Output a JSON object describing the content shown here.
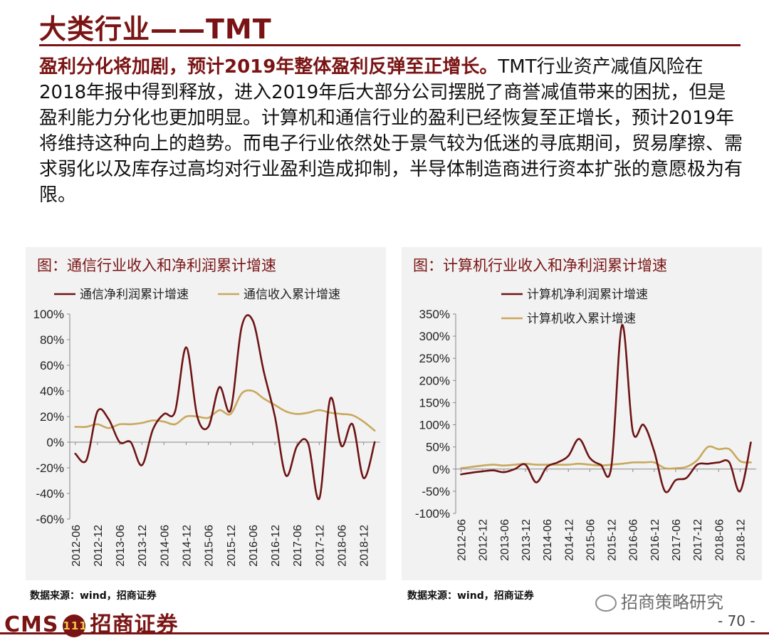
{
  "header": {
    "title": "大类行业——TMT"
  },
  "intro": {
    "lead": "盈利分化将加剧，预计2019年整体盈利反弹至正增长。",
    "body": "TMT行业资产减值风险在2018年报中得到释放，进入2019年后大部分公司摆脱了商誉减值带来的困扰，但是盈利能力分化也更加明显。计算机和通信行业的盈利已经恢复至正增长，预计2019年将维持这种向上的趋势。而电子行业依然处于景气较为低迷的寻底期间，贸易摩擦、需求弱化以及库存过高均对行业盈利造成抑制，半导体制造商进行资本扩张的意愿极为有限。"
  },
  "colors": {
    "profit": "#6e1414",
    "revenue": "#c9a85c",
    "accent": "#7a1414",
    "panel": "#f2f2f2"
  },
  "chart_data": [
    {
      "type": "line",
      "title": "图：通信行业收入和净利润累计增速",
      "ylim": [
        -60,
        100
      ],
      "yticks": [
        "100%",
        "80%",
        "60%",
        "40%",
        "20%",
        "0%",
        "-20%",
        "-40%",
        "-60%"
      ],
      "xtick_labels": [
        "2012-06",
        "2012-12",
        "2013-06",
        "2013-12",
        "2014-06",
        "2014-12",
        "2015-06",
        "2015-12",
        "2016-06",
        "2016-12",
        "2017-06",
        "2017-12",
        "2018-06",
        "2018-12"
      ],
      "grid": false,
      "legend": "top",
      "series": [
        {
          "name": "通信净利润累计增速",
          "color": "#6e1414",
          "values": [
            -9,
            -14,
            24,
            18,
            0,
            0,
            -18,
            10,
            22,
            24,
            74,
            20,
            12,
            43,
            25,
            90,
            95,
            55,
            20,
            -26,
            -3,
            -1,
            -44,
            34,
            -3,
            14,
            -28,
            0
          ]
        },
        {
          "name": "通信收入累计增速",
          "color": "#c9a85c",
          "values": [
            12,
            12,
            14,
            11,
            14,
            14,
            15,
            17,
            16,
            14,
            20,
            20,
            19,
            25,
            22,
            38,
            40,
            34,
            29,
            24,
            22,
            23,
            25,
            23,
            22,
            21,
            16,
            9
          ]
        }
      ]
    },
    {
      "type": "line",
      "title": "图：计算机行业收入和净利润累计增速",
      "ylim": [
        -100,
        350
      ],
      "yticks": [
        "350%",
        "300%",
        "250%",
        "200%",
        "150%",
        "100%",
        "50%",
        "0%",
        "-50%",
        "-100%"
      ],
      "xtick_labels": [
        "2012-06",
        "2012-12",
        "2013-06",
        "2013-12",
        "2014-06",
        "2014-12",
        "2015-06",
        "2015-12",
        "2016-06",
        "2016-12",
        "2017-06",
        "2017-12",
        "2018-06",
        "2018-12"
      ],
      "grid": false,
      "legend": "top",
      "series": [
        {
          "name": "计算机净利润累计增速",
          "color": "#6e1414",
          "values": [
            -12,
            -8,
            -5,
            -3,
            -7,
            0,
            10,
            -30,
            5,
            15,
            30,
            68,
            25,
            10,
            5,
            325,
            85,
            100,
            40,
            -50,
            -25,
            -20,
            10,
            12,
            15,
            15,
            -50,
            60
          ]
        },
        {
          "name": "计算机收入累计增速",
          "color": "#c9a85c",
          "values": [
            2,
            5,
            8,
            10,
            8,
            10,
            12,
            10,
            10,
            10,
            10,
            12,
            10,
            8,
            10,
            12,
            15,
            15,
            15,
            2,
            2,
            5,
            20,
            50,
            45,
            45,
            18,
            15
          ]
        }
      ]
    }
  ],
  "sources": {
    "left": "数据来源：wind，招商证券",
    "right": "数据来源：wind，招商证券"
  },
  "footer": {
    "logo_latin": "CMS",
    "badge_glyph": "111",
    "logo_cn": "招商证券",
    "watermark": "招商策略研究",
    "page": "- 70 -"
  }
}
